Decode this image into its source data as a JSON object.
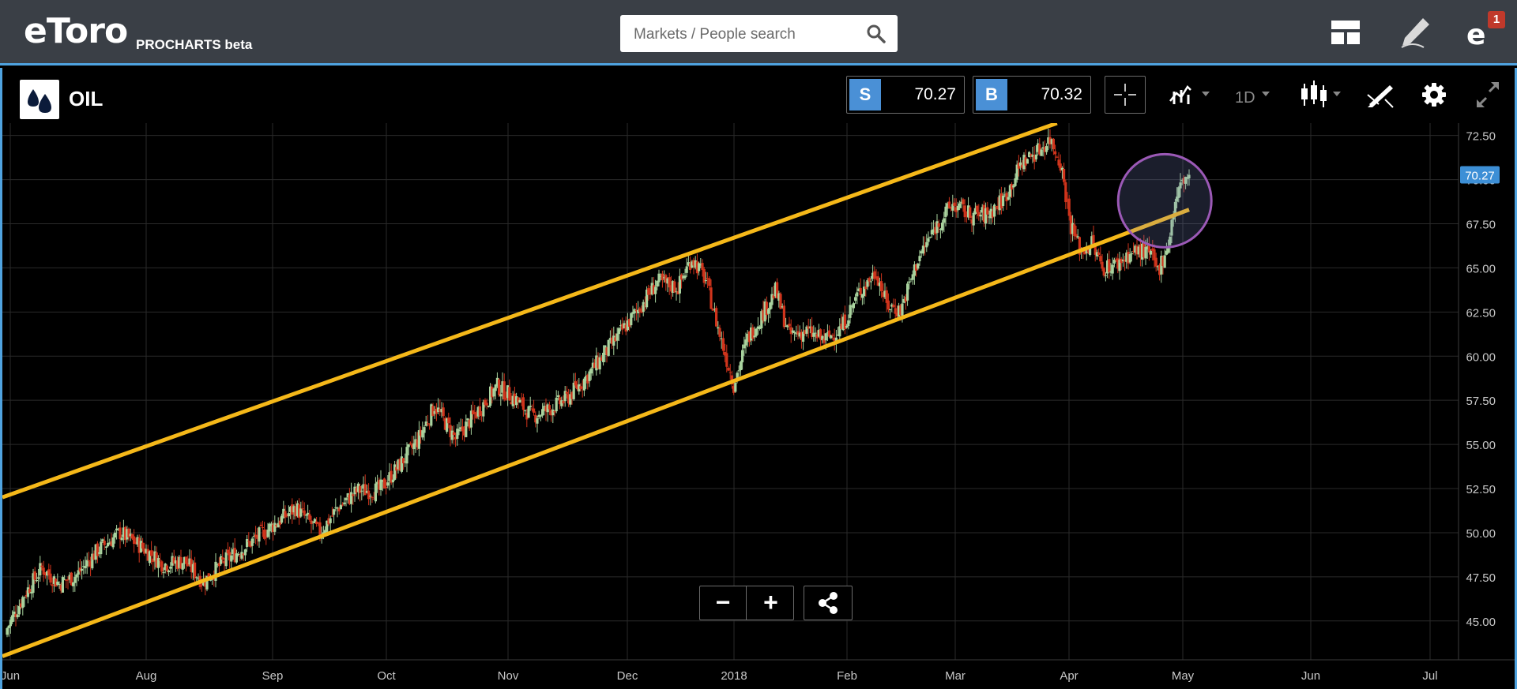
{
  "header": {
    "logo_text": "eToro",
    "logo_sub": "PROCHARTS beta",
    "search_placeholder": "Markets / People search",
    "notification_count": "1"
  },
  "toolbar": {
    "instrument": "OIL",
    "sell_tag": "S",
    "sell_price": "70.27",
    "buy_tag": "B",
    "buy_price": "70.32",
    "timeframe": "1D"
  },
  "controls": {
    "zoom_out": "−",
    "zoom_in": "+"
  },
  "colors": {
    "accent": "#4fa3e0",
    "up_candle": "#a9d39e",
    "down_candle": "#d0341c",
    "channel": "#f5b819",
    "highlight": "#9b59b6",
    "price_tag": "#3d8fd6"
  },
  "chart_data": {
    "type": "candlestick",
    "instrument": "OIL",
    "timeframe": "1D",
    "x_labels": [
      "Jun",
      "Aug",
      "Sep",
      "Oct",
      "Nov",
      "Dec",
      "2018",
      "Feb",
      "Mar",
      "Apr",
      "May",
      "Jun",
      "Jul"
    ],
    "y_ticks": [
      "72.50",
      "70.00",
      "67.50",
      "65.00",
      "62.50",
      "60.00",
      "57.50",
      "55.00",
      "52.50",
      "50.00",
      "47.50",
      "45.00"
    ],
    "ylim": [
      42.8,
      73.2
    ],
    "current_price": 70.27,
    "current_price_label": "70.27",
    "close_path": [
      [
        0,
        44.6
      ],
      [
        10,
        46.5
      ],
      [
        20,
        48.0
      ],
      [
        30,
        47.1
      ],
      [
        40,
        47.6
      ],
      [
        52,
        49.0
      ],
      [
        65,
        50.0
      ],
      [
        76,
        49.3
      ],
      [
        90,
        48.2
      ],
      [
        102,
        48.4
      ],
      [
        113,
        47.2
      ],
      [
        124,
        48.3
      ],
      [
        134,
        49.0
      ],
      [
        150,
        50.2
      ],
      [
        166,
        51.4
      ],
      [
        180,
        50.0
      ],
      [
        190,
        51.4
      ],
      [
        202,
        52.4
      ],
      [
        214,
        52.4
      ],
      [
        224,
        53.6
      ],
      [
        236,
        55.2
      ],
      [
        246,
        57.2
      ],
      [
        258,
        55.3
      ],
      [
        270,
        56.8
      ],
      [
        282,
        58.3
      ],
      [
        292,
        57.6
      ],
      [
        302,
        56.6
      ],
      [
        312,
        57.0
      ],
      [
        322,
        57.6
      ],
      [
        334,
        58.9
      ],
      [
        348,
        60.7
      ],
      [
        362,
        62.5
      ],
      [
        374,
        64.2
      ],
      [
        386,
        63.9
      ],
      [
        394,
        65.6
      ],
      [
        402,
        64.3
      ],
      [
        410,
        61.2
      ],
      [
        418,
        58.4
      ],
      [
        426,
        61.0
      ],
      [
        434,
        62.3
      ],
      [
        442,
        63.7
      ],
      [
        450,
        61.2
      ],
      [
        460,
        61.4
      ],
      [
        470,
        60.9
      ],
      [
        480,
        61.6
      ],
      [
        490,
        63.6
      ],
      [
        500,
        64.8
      ],
      [
        506,
        62.9
      ],
      [
        514,
        62.6
      ],
      [
        524,
        65.5
      ],
      [
        534,
        67.3
      ],
      [
        544,
        68.6
      ],
      [
        554,
        68.0
      ],
      [
        564,
        68.0
      ],
      [
        574,
        69.0
      ],
      [
        584,
        71.0
      ],
      [
        594,
        71.7
      ],
      [
        600,
        72.3
      ],
      [
        606,
        71.0
      ],
      [
        612,
        67.4
      ],
      [
        618,
        65.9
      ],
      [
        624,
        66.4
      ],
      [
        630,
        65.0
      ],
      [
        638,
        65.2
      ],
      [
        646,
        65.8
      ],
      [
        652,
        66.0
      ],
      [
        658,
        65.7
      ],
      [
        662,
        64.8
      ],
      [
        668,
        66.4
      ],
      [
        672,
        68.7
      ],
      [
        676,
        69.9
      ],
      [
        680,
        70.27
      ]
    ],
    "annotations": {
      "channel_upper": [
        [
          0,
          52.1
        ],
        [
          604,
          73.2
        ]
      ],
      "channel_lower": [
        [
          0,
          43.1
        ],
        [
          680,
          68.3
        ]
      ],
      "highlight_center": [
        666,
        68.8
      ],
      "highlight_radius_trading_days": 20
    }
  }
}
